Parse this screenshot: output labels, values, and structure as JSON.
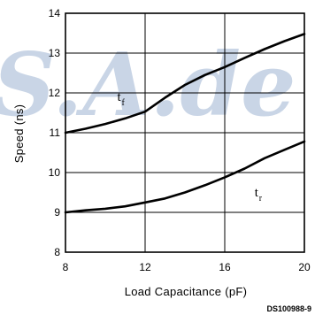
{
  "chart_data": {
    "type": "line",
    "title": "",
    "xlabel": "Load Capacitance (pF)",
    "ylabel": "Speed (ns)",
    "xlim": [
      8,
      20
    ],
    "ylim": [
      8,
      14
    ],
    "x_ticks": [
      8,
      12,
      16,
      20
    ],
    "y_ticks": [
      8,
      9,
      10,
      11,
      12,
      13,
      14
    ],
    "grid": "major gridlines at x=12, 16 and y=9..13",
    "series": [
      {
        "name": "",
        "label_main": "t",
        "label_sub": "f",
        "label_pos": [
          10.6,
          11.8
        ],
        "x": [
          8,
          9,
          10,
          11,
          12,
          13,
          14,
          15,
          16,
          17,
          18,
          19,
          20
        ],
        "y": [
          11.0,
          11.1,
          11.22,
          11.36,
          11.53,
          11.88,
          12.2,
          12.45,
          12.65,
          12.88,
          13.1,
          13.3,
          13.48
        ]
      },
      {
        "name": "",
        "label_main": "t",
        "label_sub": "r",
        "label_pos": [
          17.5,
          9.4
        ],
        "x": [
          8,
          9,
          10,
          11,
          12,
          13,
          14,
          15,
          16,
          17,
          18,
          19,
          20
        ],
        "y": [
          9.0,
          9.05,
          9.09,
          9.15,
          9.25,
          9.35,
          9.5,
          9.68,
          9.88,
          10.1,
          10.36,
          10.57,
          10.78
        ]
      }
    ]
  },
  "figure_code": "DS100988-9",
  "watermark": "S.A.de",
  "colors": {
    "line": "#000000",
    "grid": "#000000",
    "watermark": "#c9d5e6"
  }
}
